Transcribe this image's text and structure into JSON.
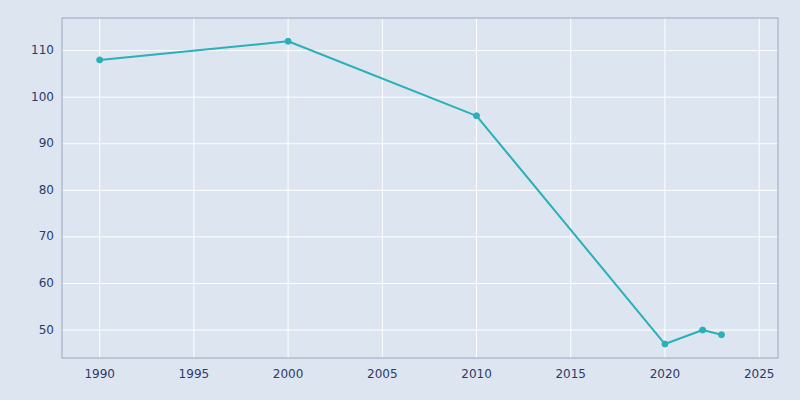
{
  "chart_data": {
    "type": "line",
    "x": [
      1990,
      2000,
      2010,
      2020,
      2022,
      2023
    ],
    "values": [
      108,
      112,
      96,
      47,
      50,
      49
    ],
    "color": "#2ab0b8",
    "marker": "circle",
    "xlim": [
      1988,
      2026
    ],
    "ylim": [
      44,
      117
    ],
    "xticks": [
      1990,
      1995,
      2000,
      2005,
      2010,
      2015,
      2020,
      2025
    ],
    "yticks": [
      50,
      60,
      70,
      80,
      90,
      100,
      110
    ],
    "grid": true
  }
}
